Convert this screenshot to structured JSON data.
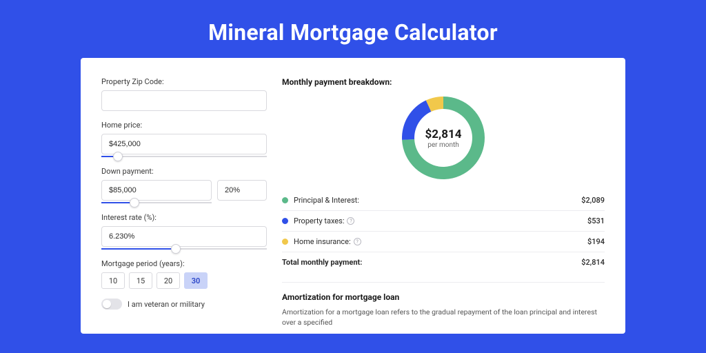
{
  "page": {
    "title": "Mineral Mortgage Calculator",
    "background_color": "#3050e8"
  },
  "form": {
    "zip": {
      "label": "Property Zip Code:",
      "value": ""
    },
    "home_price": {
      "label": "Home price:",
      "value": "$425,000",
      "slider_pct": 10
    },
    "down_payment": {
      "label": "Down payment:",
      "amount": "$85,000",
      "percent": "20%",
      "slider_pct": 30
    },
    "interest_rate": {
      "label": "Interest rate (%):",
      "value": "6.230%",
      "slider_pct": 45
    },
    "mortgage_period": {
      "label": "Mortgage period (years):",
      "options": [
        "10",
        "15",
        "20",
        "30"
      ],
      "selected": "30"
    },
    "veteran": {
      "label": "I am veteran or military",
      "checked": false
    }
  },
  "breakdown": {
    "title": "Monthly payment breakdown:",
    "center_amount": "$2,814",
    "center_sub": "per month",
    "chart": {
      "type": "donut",
      "background_color": "#ffffff",
      "ring_width": 18,
      "slices": [
        {
          "key": "principal_interest",
          "value": 2089,
          "color": "#5bb98a"
        },
        {
          "key": "property_taxes",
          "value": 531,
          "color": "#3050e8"
        },
        {
          "key": "home_insurance",
          "value": 194,
          "color": "#f1c84b"
        }
      ]
    },
    "rows": [
      {
        "label": "Principal & Interest:",
        "color": "#5bb98a",
        "value": "$2,089",
        "info": false
      },
      {
        "label": "Property taxes:",
        "color": "#3050e8",
        "value": "$531",
        "info": true
      },
      {
        "label": "Home insurance:",
        "color": "#f1c84b",
        "value": "$194",
        "info": true
      }
    ],
    "total": {
      "label": "Total monthly payment:",
      "value": "$2,814"
    }
  },
  "amortization": {
    "title": "Amortization for mortgage loan",
    "text": "Amortization for a mortgage loan refers to the gradual repayment of the loan principal and interest over a specified"
  }
}
